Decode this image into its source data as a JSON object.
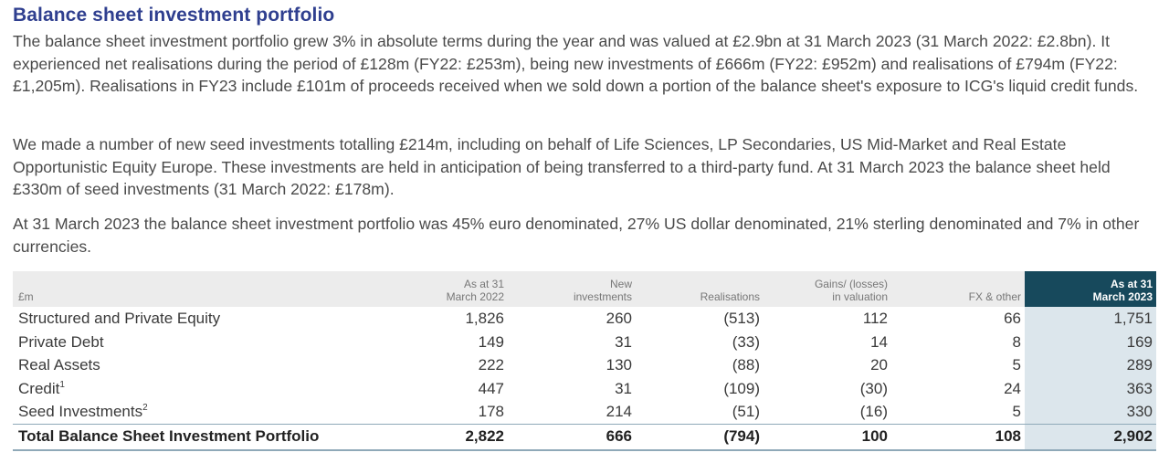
{
  "title": "Balance sheet investment portfolio",
  "paragraphs": [
    "The balance sheet investment portfolio grew 3% in absolute terms during the year and was valued at £2.9bn at 31 March 2023 (31 March 2022: £2.8bn). It experienced net realisations during the period of £128m (FY22: £253m), being new investments of £666m (FY22: £952m) and realisations of £794m (FY22: £1,205m). Realisations in FY23 include £101m of proceeds received when we sold down a portion of the balance sheet's exposure to ICG's liquid credit funds.",
    "We made a number of new seed investments totalling £214m, including on behalf of Life Sciences, LP Secondaries, US Mid-Market and Real Estate Opportunistic Equity Europe. These investments are held in anticipation of being transferred to a third-party fund. At 31 March 2023 the balance sheet held £330m of seed investments (31 March 2022: £178m).",
    "At 31 March 2023 the balance sheet investment portfolio was 45% euro denominated, 27% US dollar denominated, 21% sterling denominated and 7% in other currencies."
  ],
  "table": {
    "headers": {
      "stub": "£m",
      "c1a": "As at 31",
      "c1b": "March 2022",
      "c2a": "New",
      "c2b": "investments",
      "c3": "Realisations",
      "c4a": "Gains/ (losses)",
      "c4b": "in valuation",
      "c5": "FX & other",
      "c6a": "As at 31",
      "c6b": "March 2023"
    },
    "rows": [
      {
        "label": "Structured and Private Equity",
        "sup": "",
        "v": [
          "1,826",
          "260",
          "(513)",
          "112",
          "66",
          "1,751"
        ]
      },
      {
        "label": "Private Debt",
        "sup": "",
        "v": [
          "149",
          "31",
          "(33)",
          "14",
          "8",
          "169"
        ]
      },
      {
        "label": "Real Assets",
        "sup": "",
        "v": [
          "222",
          "130",
          "(88)",
          "20",
          "5",
          "289"
        ]
      },
      {
        "label": "Credit",
        "sup": "1",
        "v": [
          "447",
          "31",
          "(109)",
          "(30)",
          "24",
          "363"
        ]
      },
      {
        "label": "Seed Investments",
        "sup": "2",
        "v": [
          "178",
          "214",
          "(51)",
          "(16)",
          "5",
          "330"
        ]
      }
    ],
    "total": {
      "label": "Total Balance Sheet Investment Portfolio",
      "v": [
        "2,822",
        "666",
        "(794)",
        "100",
        "108",
        "2,902"
      ]
    }
  },
  "colors": {
    "title": "#2f3f8f",
    "highlight_header": "#17495c",
    "highlight_column": "#dce6ec",
    "header_band": "#ececec"
  }
}
